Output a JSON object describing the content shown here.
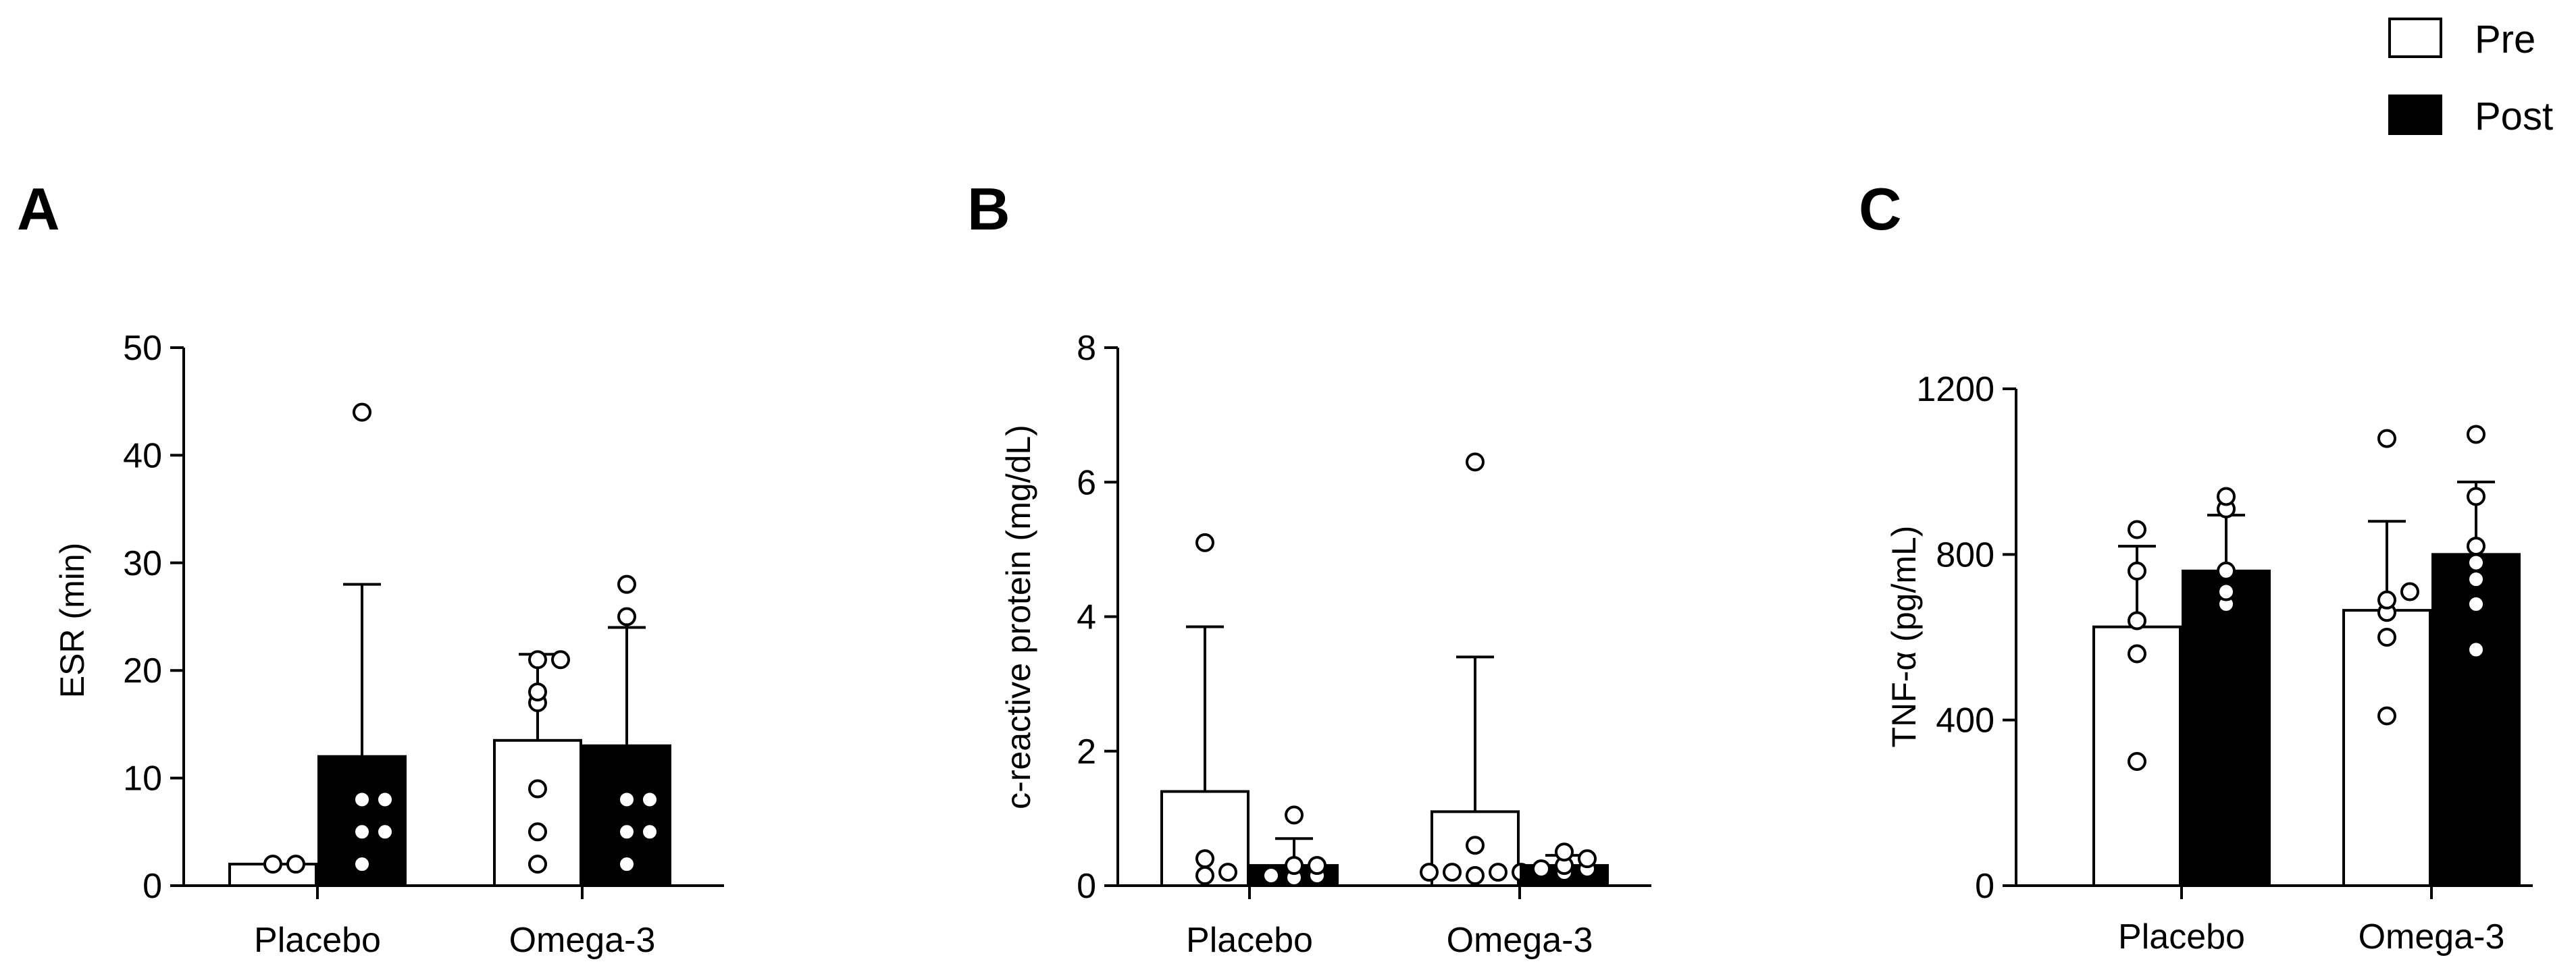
{
  "legend": {
    "items": [
      {
        "label": "Pre",
        "fill": "#ffffff"
      },
      {
        "label": "Post",
        "fill": "#000000"
      }
    ]
  },
  "chart_data": [
    {
      "panel": "A",
      "type": "bar",
      "categories": [
        "Placebo",
        "Omega-3"
      ],
      "ylabel": "ESR (min)",
      "ylim": [
        0,
        50
      ],
      "yticks": [
        0,
        10,
        20,
        30,
        40,
        50
      ],
      "series": [
        {
          "name": "Pre",
          "values": [
            2,
            13.5
          ],
          "error": [
            0,
            8
          ],
          "points": [
            [
              2,
              2
            ],
            [
              2,
              5,
              9,
              17,
              18,
              21,
              21
            ]
          ]
        },
        {
          "name": "Post",
          "values": [
            12,
            13
          ],
          "error": [
            16,
            11
          ],
          "points": [
            [
              2,
              5,
              5,
              8,
              8,
              44
            ],
            [
              2,
              5,
              5,
              8,
              8,
              25,
              28
            ]
          ]
        }
      ]
    },
    {
      "panel": "B",
      "type": "bar",
      "categories": [
        "Placebo",
        "Omega-3"
      ],
      "ylabel": "c-reactive protein (mg/dL)",
      "ylim": [
        0,
        8
      ],
      "yticks": [
        0,
        2,
        4,
        6,
        8
      ],
      "series": [
        {
          "name": "Pre",
          "values": [
            1.4,
            1.1
          ],
          "error": [
            2.45,
            2.3
          ],
          "points": [
            [
              0.15,
              0.2,
              0.4,
              5.1
            ],
            [
              0.15,
              0.2,
              0.2,
              0.2,
              0.2,
              0.6,
              6.3
            ]
          ]
        },
        {
          "name": "Post",
          "values": [
            0.3,
            0.3
          ],
          "error": [
            0.4,
            0.15
          ],
          "points": [
            [
              0.1,
              0.15,
              0.15,
              0.3,
              0.3,
              1.05
            ],
            [
              0.2,
              0.25,
              0.25,
              0.3,
              0.4,
              0.5
            ]
          ]
        }
      ]
    },
    {
      "panel": "C",
      "type": "bar",
      "categories": [
        "Placebo",
        "Omega-3"
      ],
      "ylabel": "TNF-α (pg/mL)",
      "ylim": [
        0,
        1200
      ],
      "yticks": [
        0,
        400,
        800,
        1200
      ],
      "series": [
        {
          "name": "Pre",
          "values": [
            625,
            665
          ],
          "error": [
            195,
            215
          ],
          "points": [
            [
              300,
              560,
              640,
              760,
              860
            ],
            [
              410,
              600,
              660,
              690,
              710,
              1080
            ]
          ]
        },
        {
          "name": "Post",
          "values": [
            760,
            800
          ],
          "error": [
            135,
            175
          ],
          "points": [
            [
              680,
              710,
              760,
              910,
              940
            ],
            [
              570,
              680,
              740,
              780,
              820,
              940,
              1090
            ]
          ]
        }
      ]
    }
  ]
}
